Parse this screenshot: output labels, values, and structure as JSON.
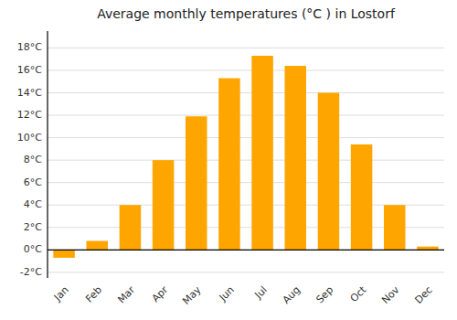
{
  "chart_data": {
    "type": "bar",
    "title": "Average monthly temperatures (°C ) in Lostorf",
    "categories": [
      "Jan",
      "Feb",
      "Mar",
      "Apr",
      "May",
      "Jun",
      "Jul",
      "Aug",
      "Sep",
      "Oct",
      "Nov",
      "Dec"
    ],
    "values": [
      -0.7,
      0.8,
      4.0,
      8.0,
      11.9,
      15.3,
      17.3,
      16.4,
      14.0,
      9.4,
      4.0,
      0.3
    ],
    "color": "#FFA500",
    "ylim": [
      -2.5,
      19.5
    ],
    "yticks": [
      {
        "value": -2,
        "label": "-2°C"
      },
      {
        "value": 0,
        "label": "0°C"
      },
      {
        "value": 2,
        "label": "2°C"
      },
      {
        "value": 4,
        "label": "4°C"
      },
      {
        "value": 6,
        "label": "6°C"
      },
      {
        "value": 8,
        "label": "8°C"
      },
      {
        "value": 10,
        "label": "10°C"
      },
      {
        "value": 12,
        "label": "12°C"
      },
      {
        "value": 14,
        "label": "14°C"
      },
      {
        "value": 16,
        "label": "16°C"
      },
      {
        "value": 18,
        "label": "18°C"
      }
    ],
    "grid": true
  }
}
